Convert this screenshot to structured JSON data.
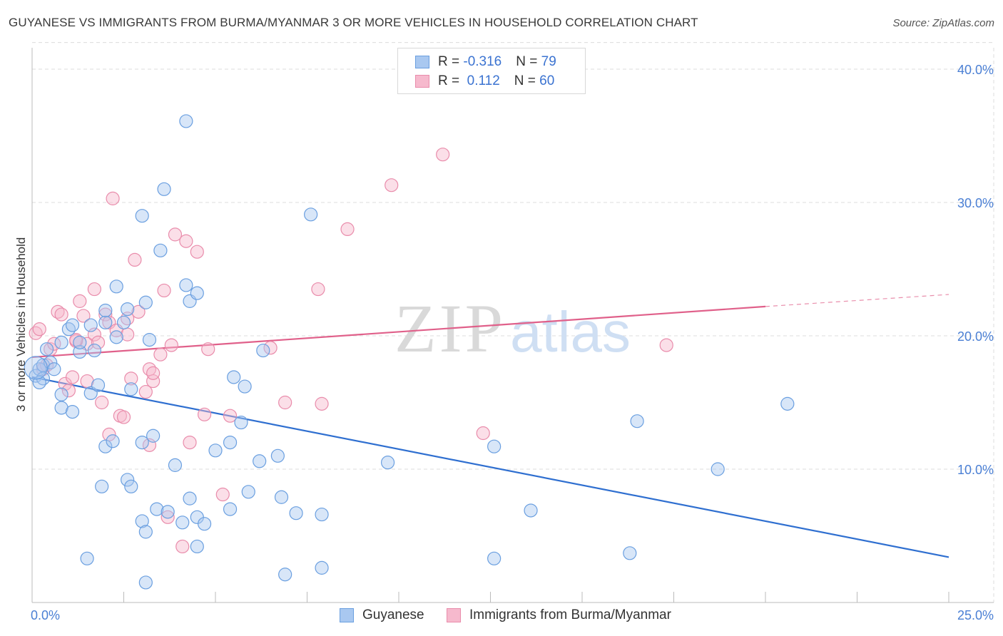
{
  "header": {
    "title": "GUYANESE VS IMMIGRANTS FROM BURMA/MYANMAR 3 OR MORE VEHICLES IN HOUSEHOLD CORRELATION CHART",
    "source": "Source: ZipAtlas.com"
  },
  "watermark": {
    "zip": "ZIP",
    "atlas": "atlas"
  },
  "legend": {
    "rows": [
      {
        "r_label": "R = ",
        "r_value": "-0.316",
        "n_label": "N = ",
        "n_value": "79"
      },
      {
        "r_label": "R = ",
        "r_value": " 0.112",
        "n_label": "N = ",
        "n_value": "60"
      }
    ]
  },
  "bottom_legend": {
    "series1": "Guyanese",
    "series2": "Immigrants from Burma/Myanmar"
  },
  "colors": {
    "blue_fill": "#a9c8f0",
    "blue_stroke": "#6a9fe0",
    "blue_line": "#2f6fd0",
    "pink_fill": "#f6b9cd",
    "pink_stroke": "#e98cab",
    "pink_line": "#e0608a",
    "tick_text": "#4a7fd4"
  },
  "chart_data": {
    "type": "scatter",
    "title": "GUYANESE VS IMMIGRANTS FROM BURMA/MYANMAR 3 OR MORE VEHICLES IN HOUSEHOLD CORRELATION CHART",
    "xlabel": "",
    "ylabel": "3 or more Vehicles in Household",
    "xlim": [
      0,
      25
    ],
    "ylim": [
      0,
      40
    ],
    "x_tick_labels": [
      "0.0%",
      "25.0%"
    ],
    "y_ticks": [
      10,
      20,
      30,
      40
    ],
    "y_tick_labels": [
      "10.0%",
      "20.0%",
      "30.0%",
      "40.0%"
    ],
    "grid": true,
    "legend_position": "top-center",
    "series": [
      {
        "name": "Guyanese",
        "R": -0.316,
        "N": 79,
        "trend": {
          "x": [
            0,
            25
          ],
          "y": [
            16.9,
            3.4
          ]
        },
        "points": [
          [
            0.1,
            17.0
          ],
          [
            0.2,
            17.5
          ],
          [
            0.3,
            17.8
          ],
          [
            0.4,
            19.0
          ],
          [
            0.5,
            18.0
          ],
          [
            0.6,
            17.5
          ],
          [
            0.3,
            16.8
          ],
          [
            0.2,
            16.5
          ],
          [
            0.8,
            19.5
          ],
          [
            1.0,
            20.5
          ],
          [
            1.1,
            20.8
          ],
          [
            1.3,
            18.8
          ],
          [
            1.6,
            20.8
          ],
          [
            1.7,
            18.9
          ],
          [
            2.0,
            21.0
          ],
          [
            2.3,
            19.9
          ],
          [
            2.6,
            22.0
          ],
          [
            2.5,
            21.0
          ],
          [
            0.8,
            15.6
          ],
          [
            0.8,
            14.6
          ],
          [
            1.1,
            14.3
          ],
          [
            1.6,
            15.7
          ],
          [
            1.8,
            16.3
          ],
          [
            2.7,
            16.0
          ],
          [
            3.2,
            19.7
          ],
          [
            3.1,
            22.5
          ],
          [
            3.5,
            26.4
          ],
          [
            3.0,
            29.0
          ],
          [
            3.6,
            31.0
          ],
          [
            4.2,
            36.1
          ],
          [
            4.2,
            23.8
          ],
          [
            4.3,
            22.6
          ],
          [
            4.5,
            23.2
          ],
          [
            2.3,
            23.7
          ],
          [
            2.0,
            21.9
          ],
          [
            3.3,
            12.5
          ],
          [
            3.0,
            12.0
          ],
          [
            2.0,
            11.7
          ],
          [
            2.2,
            12.1
          ],
          [
            2.6,
            9.2
          ],
          [
            2.7,
            8.7
          ],
          [
            1.9,
            8.7
          ],
          [
            3.9,
            10.3
          ],
          [
            4.3,
            7.8
          ],
          [
            4.5,
            6.4
          ],
          [
            3.4,
            7.0
          ],
          [
            3.7,
            6.8
          ],
          [
            3.0,
            6.1
          ],
          [
            3.1,
            5.3
          ],
          [
            4.7,
            5.9
          ],
          [
            4.5,
            4.2
          ],
          [
            1.5,
            3.3
          ],
          [
            3.1,
            1.5
          ],
          [
            5.0,
            11.4
          ],
          [
            5.4,
            12.0
          ],
          [
            5.7,
            13.5
          ],
          [
            5.4,
            7.0
          ],
          [
            5.9,
            8.3
          ],
          [
            6.2,
            10.6
          ],
          [
            6.7,
            11.0
          ],
          [
            6.8,
            7.9
          ],
          [
            7.2,
            6.7
          ],
          [
            7.9,
            6.6
          ],
          [
            7.9,
            2.6
          ],
          [
            6.9,
            2.1
          ],
          [
            5.5,
            16.9
          ],
          [
            5.8,
            16.2
          ],
          [
            6.3,
            18.9
          ],
          [
            7.6,
            29.1
          ],
          [
            9.7,
            10.5
          ],
          [
            12.6,
            11.7
          ],
          [
            12.6,
            3.3
          ],
          [
            13.6,
            6.9
          ],
          [
            16.3,
            3.7
          ],
          [
            16.5,
            13.6
          ],
          [
            18.7,
            10.0
          ],
          [
            20.6,
            14.9
          ],
          [
            1.3,
            19.5
          ],
          [
            4.1,
            6.0
          ]
        ]
      },
      {
        "name": "Immigrants from Burma/Myanmar",
        "R": 0.112,
        "N": 60,
        "trend": {
          "x": [
            0,
            20
          ],
          "y": [
            18.4,
            22.2
          ],
          "dashed_to": {
            "x": 25,
            "y": 23.1
          }
        },
        "points": [
          [
            0.1,
            20.2
          ],
          [
            0.2,
            20.5
          ],
          [
            0.3,
            17.5
          ],
          [
            0.4,
            17.8
          ],
          [
            0.5,
            19.0
          ],
          [
            0.6,
            19.4
          ],
          [
            0.7,
            21.8
          ],
          [
            0.8,
            21.6
          ],
          [
            0.9,
            16.4
          ],
          [
            1.0,
            15.9
          ],
          [
            1.1,
            16.9
          ],
          [
            1.2,
            19.6
          ],
          [
            1.3,
            22.6
          ],
          [
            1.4,
            21.5
          ],
          [
            1.5,
            19.4
          ],
          [
            1.5,
            16.6
          ],
          [
            1.7,
            20.1
          ],
          [
            1.7,
            23.5
          ],
          [
            1.8,
            19.5
          ],
          [
            1.9,
            15.0
          ],
          [
            2.0,
            21.6
          ],
          [
            2.1,
            21.0
          ],
          [
            2.1,
            12.6
          ],
          [
            2.2,
            30.3
          ],
          [
            2.3,
            20.4
          ],
          [
            2.4,
            14.0
          ],
          [
            2.5,
            13.9
          ],
          [
            2.6,
            21.3
          ],
          [
            2.6,
            20.1
          ],
          [
            2.7,
            16.8
          ],
          [
            2.8,
            25.7
          ],
          [
            2.9,
            21.8
          ],
          [
            3.1,
            15.8
          ],
          [
            3.2,
            17.5
          ],
          [
            3.3,
            16.6
          ],
          [
            3.3,
            17.2
          ],
          [
            3.5,
            18.6
          ],
          [
            3.6,
            23.4
          ],
          [
            3.7,
            6.4
          ],
          [
            3.8,
            19.3
          ],
          [
            3.9,
            27.6
          ],
          [
            4.1,
            4.2
          ],
          [
            4.2,
            27.1
          ],
          [
            4.3,
            12.0
          ],
          [
            4.5,
            26.3
          ],
          [
            4.7,
            14.1
          ],
          [
            4.8,
            19.0
          ],
          [
            5.2,
            8.1
          ],
          [
            5.4,
            14.0
          ],
          [
            6.5,
            19.1
          ],
          [
            6.9,
            15.0
          ],
          [
            7.8,
            23.5
          ],
          [
            7.9,
            14.9
          ],
          [
            8.6,
            28.0
          ],
          [
            9.8,
            31.3
          ],
          [
            11.2,
            33.6
          ],
          [
            12.3,
            12.7
          ],
          [
            17.3,
            19.3
          ],
          [
            3.2,
            11.8
          ],
          [
            1.2,
            19.7
          ]
        ]
      }
    ]
  }
}
